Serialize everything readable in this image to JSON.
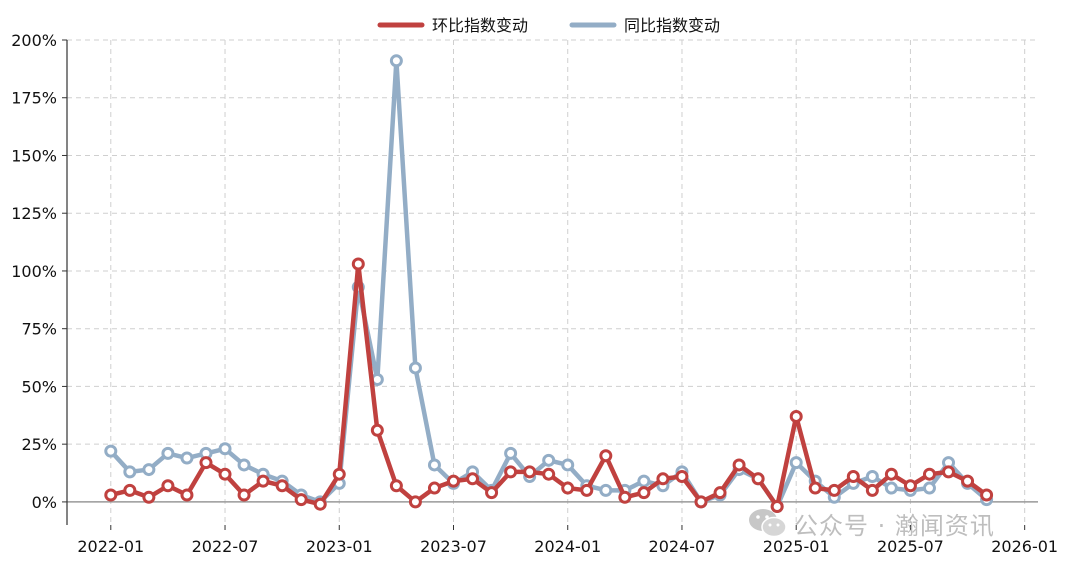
{
  "legend": {
    "mom_label": "环比指数变动",
    "yoy_label": "同比指数变动"
  },
  "watermark": {
    "text": "公众号 · 瀚闻资讯",
    "icon": "wechat-icon"
  },
  "chart_data": {
    "type": "line",
    "title": "",
    "xlabel": "",
    "ylabel": "",
    "x_start": "2022-01",
    "x": [
      "2022-01",
      "2022-02",
      "2022-03",
      "2022-04",
      "2022-05",
      "2022-06",
      "2022-07",
      "2022-08",
      "2022-09",
      "2022-10",
      "2022-11",
      "2022-12",
      "2023-01",
      "2023-02",
      "2023-03",
      "2023-04",
      "2023-05",
      "2023-06",
      "2023-07",
      "2023-08",
      "2023-09",
      "2023-10",
      "2023-11",
      "2023-12",
      "2024-01",
      "2024-02",
      "2024-03",
      "2024-04",
      "2024-05",
      "2024-06",
      "2024-07",
      "2024-08",
      "2024-09",
      "2024-10",
      "2024-11",
      "2024-12",
      "2025-01",
      "2025-02",
      "2025-03",
      "2025-04",
      "2025-05",
      "2025-06",
      "2025-07",
      "2025-08",
      "2025-09",
      "2025-10",
      "2025-11"
    ],
    "series": [
      {
        "name": "环比指数变动",
        "color": "#c0413f",
        "values": [
          3,
          5,
          2,
          7,
          3,
          17,
          12,
          3,
          9,
          7,
          1,
          -1,
          12,
          103,
          31,
          7,
          0,
          6,
          9,
          10,
          4,
          13,
          13,
          12,
          6,
          5,
          20,
          2,
          4,
          10,
          11,
          0,
          4,
          16,
          10,
          -2,
          37,
          6,
          5,
          11,
          5,
          12,
          7,
          12,
          13,
          9,
          3
        ]
      },
      {
        "name": "同比指数变动",
        "color": "#93adc6",
        "values": [
          22,
          13,
          14,
          21,
          19,
          21,
          23,
          16,
          12,
          9,
          3,
          0,
          8,
          93,
          53,
          191,
          58,
          16,
          8,
          13,
          5,
          21,
          11,
          18,
          16,
          7,
          5,
          5,
          9,
          7,
          13,
          0,
          3,
          14,
          10,
          -2,
          17,
          9,
          2,
          8,
          11,
          6,
          5,
          6,
          17,
          8,
          1
        ]
      }
    ],
    "x_ticks": [
      "2022-01",
      "2022-07",
      "2023-01",
      "2023-07",
      "2024-01",
      "2024-07",
      "2025-01",
      "2025-07",
      "2026-01"
    ],
    "y_ticks": [
      0,
      25,
      50,
      75,
      100,
      125,
      150,
      175,
      200
    ],
    "y_tick_labels": [
      "0%",
      "25%",
      "50%",
      "75%",
      "100%",
      "125%",
      "150%",
      "175%",
      "200%"
    ],
    "ylim": [
      -10,
      200
    ],
    "xlim_months": [
      -2.3,
      48.7
    ],
    "grid": true,
    "legend_position": "top-center"
  }
}
